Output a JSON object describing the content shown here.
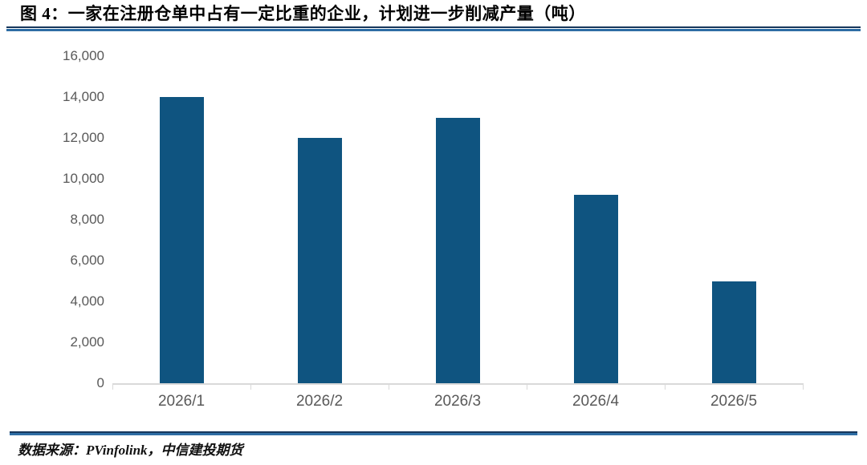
{
  "header": {
    "title": "图 4：一家在注册仓单中占有一定比重的企业，计划进一步削减产量（吨）"
  },
  "footer": {
    "source": "数据来源：PVinfolink，中信建投期货"
  },
  "colors": {
    "bar": "#0f5480",
    "axis_line": "#d9d9d9",
    "tick_label": "#595959",
    "rule_dark": "#16365c",
    "rule_light": "#2e6da4"
  },
  "chart_data": {
    "type": "bar",
    "title": "图 4：一家在注册仓单中占有一定比重的企业，计划进一步削减产量（吨）",
    "categories": [
      "2026/1",
      "2026/2",
      "2026/3",
      "2026/4",
      "2026/5"
    ],
    "values": [
      14000,
      12000,
      13000,
      9200,
      5000
    ],
    "xlabel": "",
    "ylabel": "",
    "unit": "吨",
    "ylim": [
      0,
      16000
    ],
    "ytick_step": 2000,
    "ytick_labels": [
      "0",
      "2,000",
      "4,000",
      "6,000",
      "8,000",
      "10,000",
      "12,000",
      "14,000",
      "16,000"
    ],
    "grid": false,
    "legend": false,
    "bar_color": "#0f5480"
  }
}
